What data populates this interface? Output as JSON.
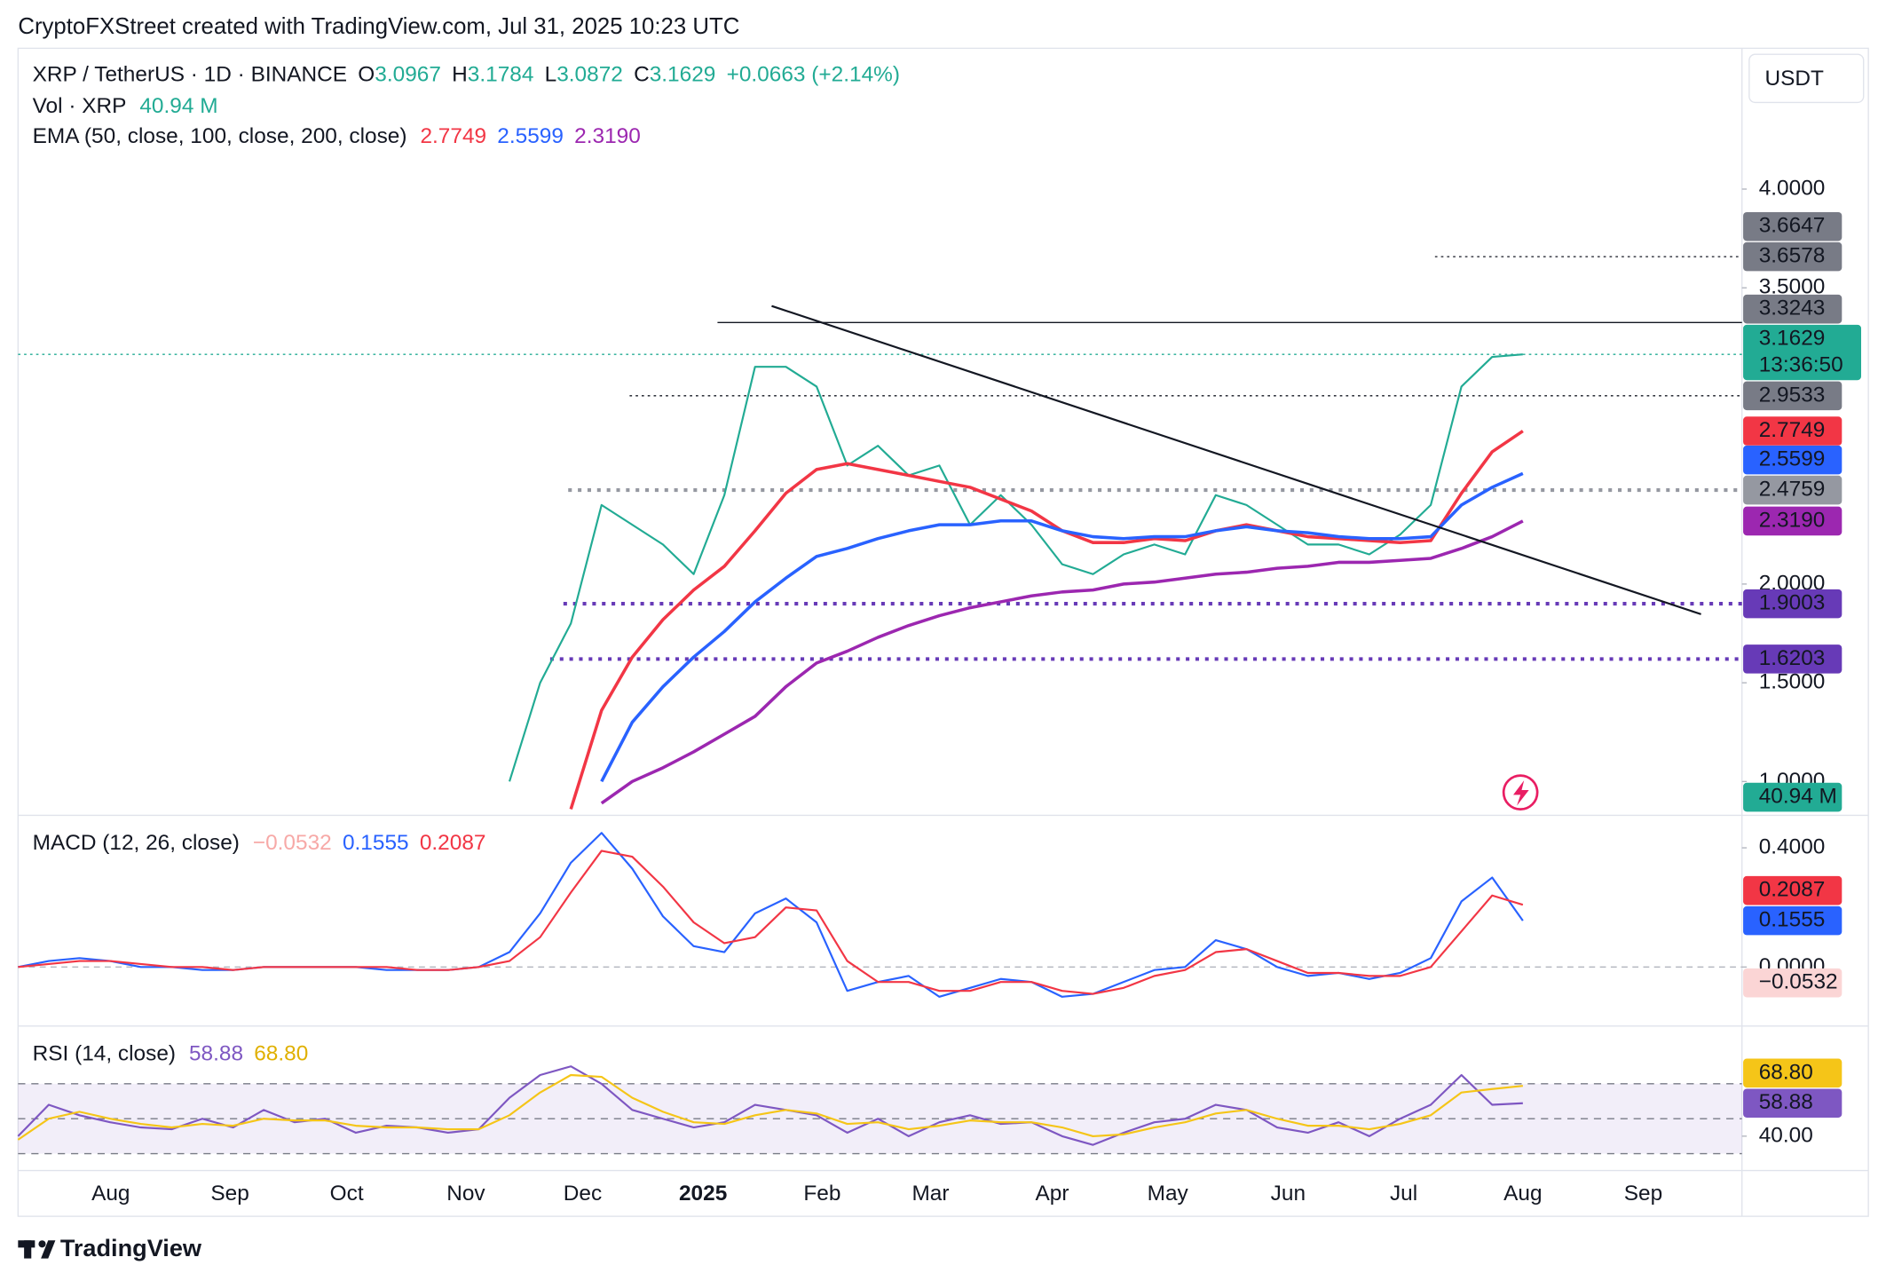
{
  "header": "CryptoFXStreet created with TradingView.com, Jul 31, 2025 10:23 UTC",
  "currency": "USDT",
  "footer": "TradingView",
  "time_axis": [
    "Aug",
    "Sep",
    "Oct",
    "Nov",
    "Dec",
    "2025",
    "Feb",
    "Mar",
    "Apr",
    "May",
    "Jun",
    "Jul",
    "Aug",
    "Sep"
  ],
  "chart_data": [
    {
      "type": "line",
      "symbol": "XRP / TetherUS · 1D · BINANCE",
      "ohlc": [
        {
          "label": "O",
          "value": "3.0967"
        },
        {
          "label": "H",
          "value": "3.1784"
        },
        {
          "label": "L",
          "value": "3.0872"
        },
        {
          "label": "C",
          "value": "3.1629"
        }
      ],
      "change": "+0.0663 (+2.14%)",
      "volume_label": "Vol · XRP",
      "volume_value": "40.94 M",
      "volume_color": "#22ab94",
      "ema_label": "EMA (50, close, 100, close, 200, close)",
      "countdown": "13:36:50",
      "ylim": [
        0.835,
        4.713
      ],
      "yticks": [
        {
          "value": 4,
          "label": "4.0000"
        },
        {
          "value": 3.5,
          "label": "3.5000"
        },
        {
          "value": 2,
          "label": "2.0000"
        },
        {
          "value": 1.5,
          "label": "1.5000"
        },
        {
          "value": 1,
          "label": "1.0000"
        }
      ],
      "levels": [
        {
          "value": 3.6647,
          "label": "3.6647",
          "color": "#787b86"
        },
        {
          "value": 3.6578,
          "label": "3.6578",
          "color": "#787b86",
          "line": "dotted",
          "line_color": "#131722"
        },
        {
          "value": 3.3243,
          "label": "3.3243",
          "color": "#787b86",
          "line": "solid",
          "line_color": "#131722"
        },
        {
          "value": 3.1629,
          "label": "3.1629",
          "color": "#22ab94",
          "line": "dotted",
          "line_color": "#22ab94",
          "countdown": true
        },
        {
          "value": 2.9533,
          "label": "2.9533",
          "color": "#787b86",
          "line": "dotted",
          "line_color": "#131722"
        },
        {
          "value": 2.4759,
          "label": "2.4759",
          "color": "#9598a1",
          "line": "dotted-thick",
          "line_color": "#9598a1"
        },
        {
          "value": 1.9003,
          "label": "1.9003",
          "color": "#673ab7",
          "line": "dotted-thick",
          "line_color": "#673ab7"
        },
        {
          "value": 1.6203,
          "label": "1.6203",
          "color": "#673ab7",
          "line": "dotted-thick",
          "line_color": "#673ab7"
        }
      ],
      "series": [
        {
          "color": "#22ab94",
          "values": [
            null,
            null,
            null,
            null,
            null,
            null,
            null,
            null,
            null,
            null,
            null,
            null,
            null,
            null,
            null,
            null,
            1.0,
            1.5,
            1.8,
            2.4,
            2.3,
            2.2,
            2.05,
            2.45,
            3.1,
            3.1,
            3.0,
            2.6,
            2.7,
            2.55,
            2.6,
            2.3,
            2.45,
            2.3,
            2.1,
            2.05,
            2.15,
            2.2,
            2.15,
            2.45,
            2.4,
            2.3,
            2.2,
            2.2,
            2.15,
            2.25,
            2.4,
            3.0,
            3.15,
            3.1629
          ]
        },
        {
          "color": "#f23645",
          "value_label": "2.7749",
          "values": [
            null,
            null,
            null,
            null,
            null,
            null,
            null,
            null,
            null,
            null,
            null,
            null,
            null,
            null,
            null,
            null,
            null,
            null,
            0.86,
            1.36,
            1.63,
            1.82,
            1.97,
            2.09,
            2.27,
            2.46,
            2.58,
            2.61,
            2.58,
            2.55,
            2.52,
            2.49,
            2.43,
            2.37,
            2.27,
            2.21,
            2.21,
            2.23,
            2.22,
            2.27,
            2.3,
            2.27,
            2.24,
            2.23,
            2.22,
            2.21,
            2.22,
            2.46,
            2.67,
            2.7749
          ]
        },
        {
          "color": "#2962ff",
          "value_label": "2.5599",
          "values": [
            null,
            null,
            null,
            null,
            null,
            null,
            null,
            null,
            null,
            null,
            null,
            null,
            null,
            null,
            null,
            null,
            null,
            null,
            null,
            1.0,
            1.3,
            1.48,
            1.63,
            1.76,
            1.91,
            2.03,
            2.14,
            2.18,
            2.23,
            2.27,
            2.3,
            2.3,
            2.32,
            2.32,
            2.27,
            2.24,
            2.23,
            2.24,
            2.24,
            2.27,
            2.29,
            2.27,
            2.26,
            2.24,
            2.23,
            2.23,
            2.24,
            2.4,
            2.49,
            2.5599
          ]
        },
        {
          "color": "#9c27b0",
          "value_label": "2.3190",
          "values": [
            null,
            null,
            null,
            null,
            null,
            null,
            null,
            null,
            null,
            null,
            null,
            null,
            null,
            null,
            null,
            null,
            null,
            null,
            null,
            0.89,
            1.0,
            1.07,
            1.15,
            1.24,
            1.33,
            1.48,
            1.6,
            1.66,
            1.73,
            1.79,
            1.84,
            1.88,
            1.91,
            1.94,
            1.96,
            1.97,
            2.0,
            2.01,
            2.03,
            2.05,
            2.06,
            2.08,
            2.09,
            2.11,
            2.11,
            2.12,
            2.13,
            2.18,
            2.24,
            2.319
          ]
        }
      ]
    },
    {
      "type": "line",
      "title": "MACD (12, 26, close)",
      "ylim": [
        -0.19,
        0.497
      ],
      "yticks": [
        {
          "value": 0.4,
          "label": "0.4000"
        },
        {
          "value": 0,
          "label": "0.0000"
        }
      ],
      "histogram": {
        "value": -0.0532,
        "label": "−0.0532",
        "color": "#fbd5d5",
        "text_color": "#131722",
        "legend_color": "#f7a9a7"
      },
      "series": [
        {
          "color": "#2962ff",
          "value_label": "0.1555",
          "values": [
            0.0,
            0.02,
            0.03,
            0.02,
            0.0,
            0.0,
            -0.01,
            -0.01,
            0.0,
            0.0,
            0.0,
            0.0,
            -0.01,
            -0.01,
            -0.01,
            0.0,
            0.05,
            0.18,
            0.35,
            0.45,
            0.33,
            0.17,
            0.07,
            0.05,
            0.18,
            0.23,
            0.15,
            -0.08,
            -0.05,
            -0.03,
            -0.1,
            -0.07,
            -0.04,
            -0.05,
            -0.1,
            -0.09,
            -0.05,
            -0.01,
            0.0,
            0.09,
            0.06,
            0.0,
            -0.03,
            -0.02,
            -0.04,
            -0.02,
            0.03,
            0.22,
            0.3,
            0.1555
          ]
        },
        {
          "color": "#f23645",
          "value_label": "0.2087",
          "values": [
            0.0,
            0.01,
            0.02,
            0.02,
            0.01,
            0.0,
            0.0,
            -0.01,
            0.0,
            0.0,
            0.0,
            0.0,
            0.0,
            -0.01,
            -0.01,
            0.0,
            0.02,
            0.1,
            0.25,
            0.39,
            0.37,
            0.27,
            0.15,
            0.08,
            0.1,
            0.2,
            0.19,
            0.02,
            -0.05,
            -0.05,
            -0.08,
            -0.08,
            -0.05,
            -0.05,
            -0.08,
            -0.09,
            -0.07,
            -0.03,
            -0.01,
            0.05,
            0.06,
            0.02,
            -0.02,
            -0.02,
            -0.03,
            -0.03,
            0.0,
            0.12,
            0.24,
            0.2087
          ]
        }
      ]
    },
    {
      "type": "line",
      "title": "RSI (14, close)",
      "ylim": [
        21.7,
        101
      ],
      "yticks": [
        {
          "value": 40,
          "label": "40.00"
        }
      ],
      "bands": [
        30,
        50,
        70
      ],
      "series": [
        {
          "color": "#7e57c2",
          "value_label": "58.88",
          "values": [
            40,
            58,
            52,
            48,
            45,
            44,
            50,
            45,
            55,
            48,
            50,
            42,
            46,
            45,
            42,
            44,
            62,
            75,
            80,
            70,
            55,
            50,
            45,
            48,
            58,
            55,
            52,
            42,
            50,
            40,
            48,
            52,
            47,
            48,
            40,
            35,
            42,
            48,
            50,
            58,
            55,
            45,
            42,
            48,
            40,
            50,
            58,
            75,
            58,
            58.88
          ]
        },
        {
          "color": "#f5c518",
          "value_label": "68.80",
          "values": [
            38,
            50,
            54,
            50,
            47,
            45,
            47,
            46,
            50,
            49,
            49,
            46,
            45,
            45,
            44,
            44,
            52,
            65,
            75,
            74,
            62,
            54,
            48,
            47,
            52,
            55,
            53,
            47,
            48,
            44,
            46,
            49,
            48,
            48,
            45,
            40,
            41,
            45,
            48,
            53,
            55,
            50,
            46,
            46,
            44,
            47,
            52,
            65,
            67,
            68.8
          ]
        }
      ]
    }
  ]
}
